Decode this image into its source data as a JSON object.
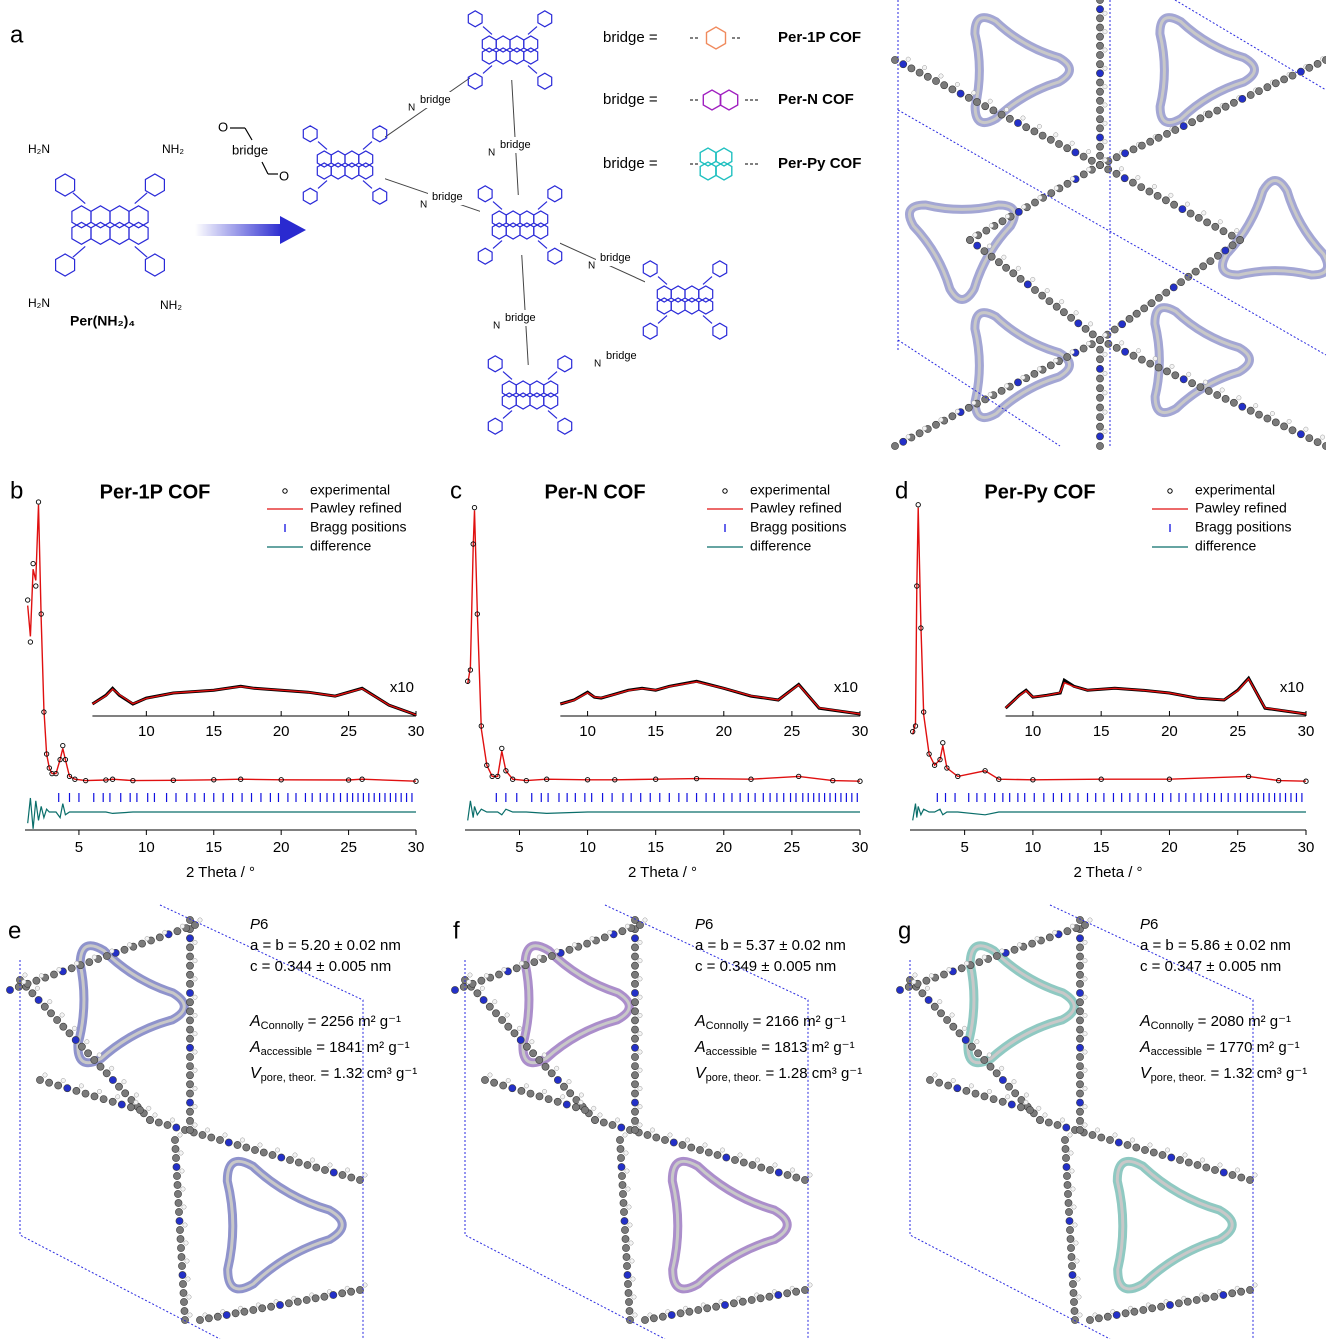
{
  "scheme": {
    "label": "a",
    "amine": {
      "groups": [
        "H₂N",
        "NH₂",
        "H₂N",
        "NH₂"
      ],
      "name": "Per(NH₂)₄"
    },
    "reagent": {
      "oxygen": "O",
      "bridge": "bridge"
    },
    "network": {
      "bridge": "bridge",
      "nitrogen": "N"
    },
    "bridges": [
      {
        "prefix": "bridge =",
        "name": "Per-1P COF",
        "color": "#1a1ae6",
        "bridge_color": "#f08a5d"
      },
      {
        "prefix": "bridge =",
        "name": "Per-N COF",
        "color": "#9a2ee0",
        "bridge_color": "#a020c0"
      },
      {
        "prefix": "bridge =",
        "name": "Per-Py COF",
        "color": "#22c2c2",
        "bridge_color": "#20c0c0"
      }
    ]
  },
  "chart_data": [
    {
      "type": "line",
      "label": "b",
      "title": "Per-1P COF",
      "title_color": "#1a1ae6",
      "xlabel": "2 Theta / °",
      "xlim": [
        1,
        30
      ],
      "xticks": [
        5,
        10,
        15,
        20,
        25,
        30
      ],
      "ylim": [
        0,
        100
      ],
      "x": [
        1.2,
        1.4,
        1.6,
        1.8,
        2.0,
        2.2,
        2.4,
        2.6,
        2.8,
        3.0,
        3.3,
        3.6,
        3.8,
        4.0,
        4.3,
        4.7,
        5.5,
        7.0,
        7.5,
        9.0,
        12,
        15,
        17,
        20,
        25,
        26,
        30
      ],
      "series": [
        {
          "name": "experimental",
          "color": "#000000",
          "values": [
            65,
            50,
            78,
            70,
            100,
            60,
            25,
            10,
            5,
            3,
            3,
            8,
            13,
            8,
            2,
            1,
            0.5,
            0.7,
            1,
            0.5,
            0.6,
            0.8,
            1,
            0.8,
            0.7,
            1,
            0.3
          ]
        },
        {
          "name": "Pawley refined",
          "color": "#e01010",
          "values": [
            63,
            52,
            76,
            72,
            99,
            58,
            26,
            10,
            5,
            3,
            3,
            8,
            12,
            8,
            2,
            1,
            0.5,
            0.7,
            1,
            0.5,
            0.6,
            0.8,
            1,
            0.8,
            0.7,
            1,
            0.3
          ]
        },
        {
          "name": "difference",
          "color": "#0a6e6a",
          "values": [
            -4,
            5,
            -6,
            4,
            -3,
            2,
            -2,
            1,
            0,
            0,
            0,
            -2,
            3,
            -1,
            0,
            0,
            0,
            0,
            -0.5,
            0,
            0,
            0,
            0,
            0,
            0,
            0,
            0
          ]
        }
      ],
      "bragg": {
        "name": "Bragg positions",
        "color": "#1010e0",
        "x": [
          3.5,
          4.3,
          5.0,
          6.1,
          6.8,
          7.3,
          8.1,
          8.8,
          9.3,
          10.1,
          10.6,
          11.5,
          12.2,
          13.0,
          13.6,
          14.3,
          15.0,
          15.7,
          16.4,
          17.1,
          17.8,
          18.5,
          19.2,
          19.8,
          20.5,
          21.1,
          21.8,
          22.3,
          22.9,
          23.4,
          23.9,
          24.4,
          24.9,
          25.3,
          25.7,
          26.1,
          26.5,
          26.9,
          27.3,
          27.7,
          28.1,
          28.5,
          28.9,
          29.3,
          29.7
        ]
      },
      "inset": {
        "label": "x10",
        "xlim": [
          6,
          30
        ],
        "xticks": [
          10,
          15,
          20,
          25,
          30
        ],
        "x": [
          6,
          7,
          7.5,
          8,
          9,
          10,
          12,
          15,
          17,
          18,
          20,
          22,
          24,
          26,
          28,
          30
        ],
        "series": [
          {
            "values": [
              4.3,
              7.4,
              9.9,
              7.4,
              4.3,
              6.4,
              8.2,
              9.2,
              10.6,
              9.9,
              9.2,
              8.5,
              7.1,
              9.9,
              3.9,
              0.4
            ]
          },
          {
            "values": [
              4.3,
              7.2,
              9.6,
              7.6,
              4.4,
              6.3,
              8.2,
              9.2,
              10.5,
              9.9,
              9.2,
              8.5,
              7.1,
              9.8,
              3.9,
              0.4
            ]
          }
        ]
      }
    },
    {
      "type": "line",
      "label": "c",
      "title": "Per-N COF",
      "title_color": "#9a2ee0",
      "xlabel": "2 Theta / °",
      "xlim": [
        1,
        30
      ],
      "xticks": [
        5,
        10,
        15,
        20,
        25,
        30
      ],
      "ylim": [
        0,
        100
      ],
      "x": [
        1.2,
        1.4,
        1.6,
        1.7,
        1.9,
        2.2,
        2.6,
        3.0,
        3.4,
        3.7,
        4.0,
        4.5,
        5.5,
        7.0,
        10,
        12,
        15,
        18,
        22,
        25.5,
        28,
        30
      ],
      "series": [
        {
          "name": "experimental",
          "color": "#000000",
          "values": [
            36,
            40,
            85,
            98,
            60,
            20,
            6,
            2,
            2,
            12,
            4,
            1,
            0.5,
            1,
            0.8,
            0.8,
            1,
            1.2,
            1,
            2,
            0.5,
            0.3
          ]
        },
        {
          "name": "Pawley refined",
          "color": "#e01010",
          "values": [
            35,
            41,
            84,
            97,
            61,
            19,
            6,
            2,
            2,
            11,
            4,
            1,
            0.5,
            1,
            0.8,
            0.8,
            1,
            1.2,
            1,
            2,
            0.5,
            0.3
          ]
        },
        {
          "name": "difference",
          "color": "#0a6e6a",
          "values": [
            -3,
            4,
            -2,
            2,
            -1,
            1,
            0,
            0,
            0,
            -1,
            1,
            0,
            0,
            -0.5,
            0,
            0,
            0,
            0,
            0,
            0,
            0,
            0
          ]
        }
      ],
      "bragg": {
        "name": "Bragg positions",
        "color": "#1010e0",
        "x": [
          3.3,
          4.0,
          4.8,
          5.9,
          6.6,
          7.1,
          7.9,
          8.5,
          9.1,
          9.8,
          10.3,
          11.1,
          11.8,
          12.6,
          13.2,
          13.9,
          14.6,
          15.3,
          16.0,
          16.7,
          17.3,
          18.0,
          18.7,
          19.3,
          20.0,
          20.6,
          21.2,
          21.8,
          22.3,
          22.9,
          23.4,
          23.9,
          24.4,
          24.9,
          25.3,
          25.8,
          26.2,
          26.6,
          27.0,
          27.4,
          27.8,
          28.2,
          28.6,
          29.0,
          29.4,
          29.8
        ]
      },
      "inset": {
        "label": "x10",
        "xlim": [
          8,
          30
        ],
        "xticks": [
          10,
          15,
          20,
          25,
          30
        ],
        "x": [
          8,
          9,
          10,
          10.5,
          11,
          12,
          13,
          14,
          15,
          16,
          18,
          20,
          22,
          24,
          25.5,
          27,
          30
        ],
        "series": [
          {
            "values": [
              4.3,
              5.7,
              8.5,
              6.7,
              6.4,
              7.8,
              9.2,
              9.9,
              9.2,
              10.6,
              12.4,
              9.9,
              7.1,
              5.7,
              11.3,
              2.8,
              0.7
            ]
          },
          {
            "values": [
              4.3,
              5.6,
              8.3,
              6.8,
              6.5,
              7.7,
              9.1,
              9.8,
              9.3,
              10.5,
              12.2,
              9.9,
              7.2,
              5.7,
              11.1,
              2.9,
              0.7
            ]
          }
        ]
      }
    },
    {
      "type": "line",
      "label": "d",
      "title": "Per-Py COF",
      "title_color": "#22c2c2",
      "xlabel": "2 Theta / °",
      "xlim": [
        1,
        30
      ],
      "xticks": [
        5,
        10,
        15,
        20,
        25,
        30
      ],
      "ylim": [
        0,
        100
      ],
      "x": [
        1.2,
        1.4,
        1.5,
        1.6,
        1.8,
        2.0,
        2.4,
        2.8,
        3.2,
        3.4,
        3.7,
        4.5,
        6.5,
        7.5,
        10,
        15,
        20,
        25.8,
        28,
        30
      ],
      "series": [
        {
          "name": "experimental",
          "color": "#000000",
          "values": [
            18,
            20,
            70,
            99,
            55,
            25,
            10,
            6,
            8,
            14,
            5,
            2,
            4,
            1,
            0.8,
            1,
            1,
            2,
            0.5,
            0.3
          ]
        },
        {
          "name": "Pawley refined",
          "color": "#e01010",
          "values": [
            17,
            21,
            69,
            98,
            56,
            24,
            10,
            6,
            8,
            13,
            5,
            2,
            4,
            1,
            0.8,
            1,
            1,
            2,
            0.5,
            0.3
          ]
        },
        {
          "name": "difference",
          "color": "#0a6e6a",
          "values": [
            -3,
            3,
            -2,
            2,
            -1,
            1,
            0,
            0,
            1,
            -1,
            0,
            0,
            -1,
            0,
            0,
            0,
            0,
            0,
            0,
            0
          ]
        }
      ],
      "bragg": {
        "name": "Bragg positions",
        "color": "#1010e0",
        "x": [
          3.0,
          3.6,
          4.3,
          5.3,
          5.9,
          6.5,
          7.2,
          7.8,
          8.3,
          8.9,
          9.4,
          10.1,
          10.8,
          11.5,
          12.1,
          12.7,
          13.3,
          14.0,
          14.6,
          15.2,
          15.9,
          16.5,
          17.1,
          17.7,
          18.3,
          18.9,
          19.5,
          20.1,
          20.7,
          21.2,
          21.8,
          22.3,
          22.8,
          23.3,
          23.8,
          24.3,
          24.8,
          25.2,
          25.7,
          26.1,
          26.5,
          26.9,
          27.3,
          27.7,
          28.1,
          28.5,
          28.9,
          29.3,
          29.7
        ]
      },
      "inset": {
        "label": "x10",
        "xlim": [
          8,
          30
        ],
        "xticks": [
          10,
          15,
          20,
          25,
          30
        ],
        "x": [
          8,
          9,
          9.5,
          10,
          11,
          12,
          12.3,
          13,
          14,
          16,
          18,
          20,
          22,
          24,
          25,
          25.8,
          27,
          30
        ],
        "series": [
          {
            "values": [
              2.8,
              7.4,
              9.2,
              6.7,
              7.4,
              8.2,
              12.8,
              10.6,
              9.2,
              9.9,
              9.2,
              8.2,
              6.4,
              5.7,
              9.2,
              13.5,
              2.8,
              0.7
            ]
          },
          {
            "values": [
              2.9,
              7.2,
              9.0,
              6.8,
              7.3,
              8.4,
              11.9,
              10.5,
              9.2,
              9.9,
              9.2,
              8.2,
              6.4,
              5.8,
              9.0,
              13.3,
              2.9,
              0.7
            ]
          }
        ]
      }
    }
  ],
  "structures": [
    {
      "label": "e",
      "color": "#8f93cc",
      "space_group": [
        "P",
        "6"
      ],
      "lines": [
        "a = b = 5.20 ± 0.02 nm",
        "c = 0.344 ± 0.005 nm"
      ],
      "properties": [
        {
          "symbol": "A",
          "sub": "Connolly",
          "rest": " = 2256 m² g⁻¹"
        },
        {
          "symbol": "A",
          "sub": "accessible",
          "rest": " = 1841 m² g⁻¹"
        },
        {
          "symbol": "V",
          "sub": "pore, theor.",
          "rest": " = 1.32 cm³ g⁻¹"
        }
      ]
    },
    {
      "label": "f",
      "color": "#ab8ecb",
      "space_group": [
        "P",
        "6"
      ],
      "lines": [
        "a = b = 5.37 ± 0.02 nm",
        "c = 0.349 ± 0.005 nm"
      ],
      "properties": [
        {
          "symbol": "A",
          "sub": "Connolly",
          "rest": " = 2166 m² g⁻¹"
        },
        {
          "symbol": "A",
          "sub": "accessible",
          "rest": " = 1813 m² g⁻¹"
        },
        {
          "symbol": "V",
          "sub": "pore, theor.",
          "rest": " = 1.28 cm³ g⁻¹"
        }
      ]
    },
    {
      "label": "g",
      "color": "#8fc9c2",
      "space_group": [
        "P",
        "6"
      ],
      "lines": [
        "a = b = 5.86 ± 0.02 nm",
        "c = 0.347 ± 0.005 nm"
      ],
      "properties": [
        {
          "symbol": "A",
          "sub": "Connolly",
          "rest": " = 2080 m² g⁻¹"
        },
        {
          "symbol": "A",
          "sub": "accessible",
          "rest": " = 1770 m² g⁻¹"
        },
        {
          "symbol": "V",
          "sub": "pore, theor.",
          "rest": " = 1.32 cm³ g⁻¹"
        }
      ]
    }
  ]
}
